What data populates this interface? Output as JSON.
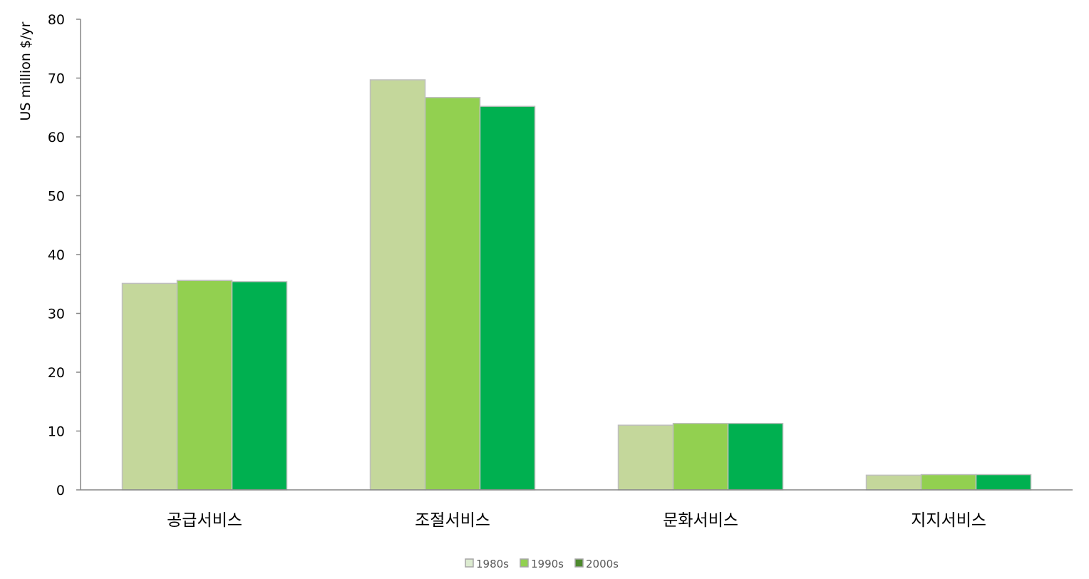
{
  "chart_data": {
    "type": "bar",
    "title": "",
    "xlabel": "",
    "ylabel": "US million  $/yr",
    "ylim": [
      0,
      80
    ],
    "yticks": [
      0,
      10,
      20,
      30,
      40,
      50,
      60,
      70,
      80
    ],
    "grid": false,
    "legend_placement": "bottom",
    "categories": [
      "공급서비스",
      "조절서비스",
      "문화서비스",
      "지지서비스"
    ],
    "series": [
      {
        "name": "1980s",
        "values": [
          35.1,
          69.7,
          11.0,
          2.5
        ],
        "color": "#c4d79b",
        "legend_color": "#dcebd0"
      },
      {
        "name": "1990s",
        "values": [
          35.6,
          66.7,
          11.3,
          2.6
        ],
        "color": "#92d050",
        "legend_color": "#92d050"
      },
      {
        "name": "2000s",
        "values": [
          35.4,
          65.2,
          11.3,
          2.6
        ],
        "color": "#00b050",
        "legend_color": "#4e8a2e"
      }
    ]
  }
}
